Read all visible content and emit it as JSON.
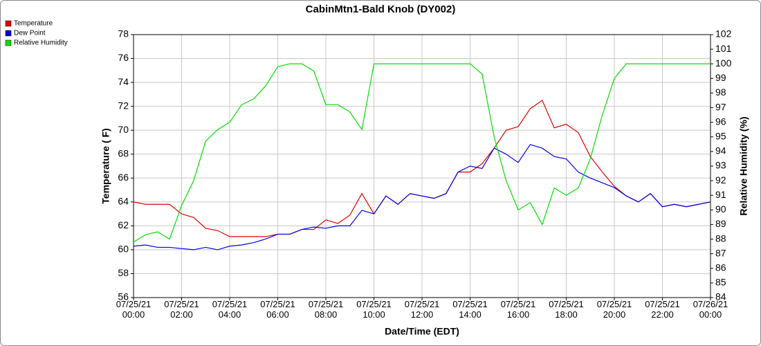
{
  "chart_data": {
    "type": "line",
    "title": "CabinMtn1-Bald Knob (DY002)",
    "xlabel": "Date/Time (EDT)",
    "ylabel": "Temperature ( F)",
    "y2label": "Relative Humidity (%)",
    "x": [
      "07/25/21 00:00",
      "07/25/21 00:30",
      "07/25/21 01:00",
      "07/25/21 01:30",
      "07/25/21 02:00",
      "07/25/21 02:30",
      "07/25/21 03:00",
      "07/25/21 03:30",
      "07/25/21 04:00",
      "07/25/21 04:30",
      "07/25/21 05:00",
      "07/25/21 05:30",
      "07/25/21 06:00",
      "07/25/21 06:30",
      "07/25/21 07:00",
      "07/25/21 07:30",
      "07/25/21 08:00",
      "07/25/21 08:30",
      "07/25/21 09:00",
      "07/25/21 09:30",
      "07/25/21 10:00",
      "07/25/21 10:30",
      "07/25/21 11:00",
      "07/25/21 11:30",
      "07/25/21 12:00",
      "07/25/21 12:30",
      "07/25/21 13:00",
      "07/25/21 13:30",
      "07/25/21 14:00",
      "07/25/21 14:30",
      "07/25/21 15:00",
      "07/25/21 15:30",
      "07/25/21 16:00",
      "07/25/21 16:30",
      "07/25/21 17:00",
      "07/25/21 17:30",
      "07/25/21 18:00",
      "07/25/21 18:30",
      "07/25/21 19:00",
      "07/25/21 19:30",
      "07/25/21 20:00",
      "07/25/21 20:30",
      "07/25/21 21:00",
      "07/25/21 21:30",
      "07/25/21 22:00",
      "07/25/21 22:30",
      "07/25/21 23:00",
      "07/25/21 23:30",
      "07/26/21 00:00"
    ],
    "series": [
      {
        "name": "Temperature",
        "color": "#e00000",
        "axis": "y",
        "values": [
          64.0,
          63.8,
          63.8,
          63.8,
          63.0,
          62.7,
          61.8,
          61.6,
          61.1,
          61.1,
          61.1,
          61.1,
          61.3,
          61.3,
          61.7,
          61.7,
          62.5,
          62.2,
          62.9,
          64.7,
          63.0,
          64.5,
          63.8,
          64.7,
          64.5,
          64.3,
          64.7,
          66.5,
          66.5,
          67.2,
          68.5,
          70.0,
          70.3,
          71.8,
          72.5,
          70.2,
          70.5,
          69.8,
          67.8,
          66.5,
          65.3,
          64.5,
          64.0,
          64.7,
          63.6,
          63.8,
          63.6,
          63.8,
          64.0
        ]
      },
      {
        "name": "Dew Point",
        "color": "#0000e0",
        "axis": "y",
        "values": [
          60.3,
          60.4,
          60.2,
          60.2,
          60.1,
          60.0,
          60.2,
          60.0,
          60.3,
          60.4,
          60.6,
          60.9,
          61.3,
          61.3,
          61.7,
          61.9,
          61.8,
          62.0,
          62.0,
          63.3,
          63.0,
          64.5,
          63.8,
          64.7,
          64.5,
          64.3,
          64.7,
          66.5,
          67.0,
          66.8,
          68.5,
          68.0,
          67.3,
          68.8,
          68.5,
          67.8,
          67.6,
          66.5,
          66.0,
          65.6,
          65.2,
          64.5,
          64.0,
          64.7,
          63.6,
          63.8,
          63.6,
          63.8,
          64.0
        ]
      },
      {
        "name": "Relative Humidity",
        "color": "#00e000",
        "axis": "y2",
        "values": [
          87.8,
          88.3,
          88.5,
          88.0,
          90.3,
          92.0,
          94.7,
          95.5,
          96.0,
          97.2,
          97.6,
          98.5,
          99.8,
          100,
          100,
          99.5,
          97.2,
          97.2,
          96.7,
          95.5,
          100,
          100,
          100,
          100,
          100,
          100,
          100,
          100,
          100,
          99.3,
          95.0,
          92.0,
          90.0,
          90.5,
          89.0,
          91.5,
          91.0,
          91.5,
          93.5,
          96.5,
          99.0,
          100,
          100,
          100,
          100,
          100,
          100,
          100,
          100
        ]
      }
    ],
    "xlim": [
      "07/25/21 00:00",
      "07/26/21 00:00"
    ],
    "xticks": [
      "07/25/21 00:00",
      "07/25/21 02:00",
      "07/25/21 04:00",
      "07/25/21 06:00",
      "07/25/21 08:00",
      "07/25/21 10:00",
      "07/25/21 12:00",
      "07/25/21 14:00",
      "07/25/21 16:00",
      "07/25/21 18:00",
      "07/25/21 20:00",
      "07/25/21 22:00",
      "07/26/21 00:00"
    ],
    "ylim": [
      56,
      78
    ],
    "yticks": [
      56,
      58,
      60,
      62,
      64,
      66,
      68,
      70,
      72,
      74,
      76,
      78
    ],
    "y2lim": [
      84,
      102
    ],
    "y2ticks": [
      84,
      85,
      86,
      87,
      88,
      89,
      90,
      91,
      92,
      93,
      94,
      95,
      96,
      97,
      98,
      99,
      100,
      101,
      102
    ],
    "grid": true
  }
}
